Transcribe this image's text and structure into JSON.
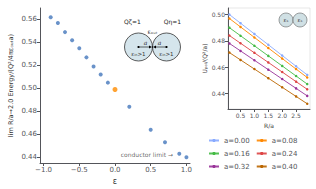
{
  "chart_data": [
    {
      "type": "scatter",
      "xlabel": "ε",
      "ylabel": "lim R/a→2.0 Energy/(Q²/4πεₒᵤₜa)",
      "xlim": [
        -1.05,
        1.05
      ],
      "ylim": [
        0.435,
        0.57
      ],
      "xticks": [
        {
          "value": -1.0,
          "label": "−1.0"
        },
        {
          "value": -0.5,
          "label": "−0.5"
        },
        {
          "value": 0.0,
          "label": "0.0"
        },
        0.5,
        {
          "value": 1.0,
          "label": "1.0"
        }
      ],
      "yticks": [
        0.44,
        0.46,
        0.48,
        {
          "value": 0.5,
          "label": "0.50"
        },
        0.52,
        0.54,
        0.56
      ],
      "grid": false,
      "series": [
        {
          "color": "#4477BB",
          "x": [
            -0.9,
            -0.8,
            -0.7,
            -0.6,
            -0.5,
            -0.4,
            -0.3,
            -0.2,
            -0.1,
            0.2,
            0.5,
            0.7,
            0.9,
            1.0
          ],
          "values": [
            0.562,
            0.557,
            0.549,
            0.542,
            0.535,
            0.527,
            0.519,
            0.512,
            0.505,
            0.484,
            0.464,
            0.453,
            0.443,
            0.44
          ]
        },
        {
          "color": "#FF8C00",
          "x": [
            0.0
          ],
          "values": [
            0.499
          ]
        }
      ],
      "annotations": [
        {
          "text": "conductor limit →",
          "x": 0.98,
          "y": 0.442
        }
      ],
      "diagram": {
        "fill": "#d5e5ec",
        "edge": "#333333",
        "left_charge": "Qζ=1",
        "right_charge": "Qη=1",
        "radius": "a",
        "inner": "εᵢₙ>1",
        "outer": "εₒᵤₜ"
      }
    },
    {
      "type": "line",
      "marker": "circle",
      "xlabel": "R/a",
      "ylabel": "Uₚₒₗ/(Q²/a)",
      "xlim": [
        0.05,
        3.0
      ],
      "ylim": [
        0.428,
        0.505
      ],
      "xticks": [
        0.5,
        {
          "value": 1.0,
          "label": "1.0"
        },
        1.5,
        {
          "value": 2.0,
          "label": "2.0"
        },
        2.5
      ],
      "yticks": [
        0.44,
        0.46,
        0.48,
        {
          "value": 0.5,
          "label": "0.50"
        }
      ],
      "grid": false,
      "legend": "bottom",
      "x": [
        0.1,
        0.5,
        1.0,
        1.5,
        2.0,
        2.5,
        2.9
      ],
      "series": [
        {
          "name": "a=0.00",
          "color": "#88AAFF",
          "values": [
            0.5,
            0.4934286,
            0.4852143,
            0.477,
            0.4687857,
            0.4605714,
            0.454
          ]
        },
        {
          "name": "a=0.08",
          "color": "#FF8800",
          "values": [
            0.497,
            0.4905714,
            0.4825357,
            0.4745,
            0.4664643,
            0.4584286,
            0.452
          ]
        },
        {
          "name": "a=0.16",
          "color": "#44BB44",
          "values": [
            0.49,
            0.4838571,
            0.4761786,
            0.4685,
            0.4608214,
            0.4531429,
            0.447
          ]
        },
        {
          "name": "a=0.24",
          "color": "#DD4444",
          "values": [
            0.484,
            0.4781429,
            0.4708214,
            0.4635,
            0.4561786,
            0.4488571,
            0.443
          ]
        },
        {
          "name": "a=0.32",
          "color": "#993399",
          "values": [
            0.478,
            0.4722857,
            0.4651429,
            0.458,
            0.4508571,
            0.4437143,
            0.438
          ]
        },
        {
          "name": "a=0.40",
          "color": "#BB6600",
          "values": [
            0.471,
            0.4654286,
            0.4584643,
            0.4515,
            0.4445357,
            0.4375714,
            0.432
          ]
        }
      ],
      "diagram": {
        "fill": "#d0e0e4",
        "edge": "#444444",
        "label": "εₛ"
      }
    }
  ]
}
